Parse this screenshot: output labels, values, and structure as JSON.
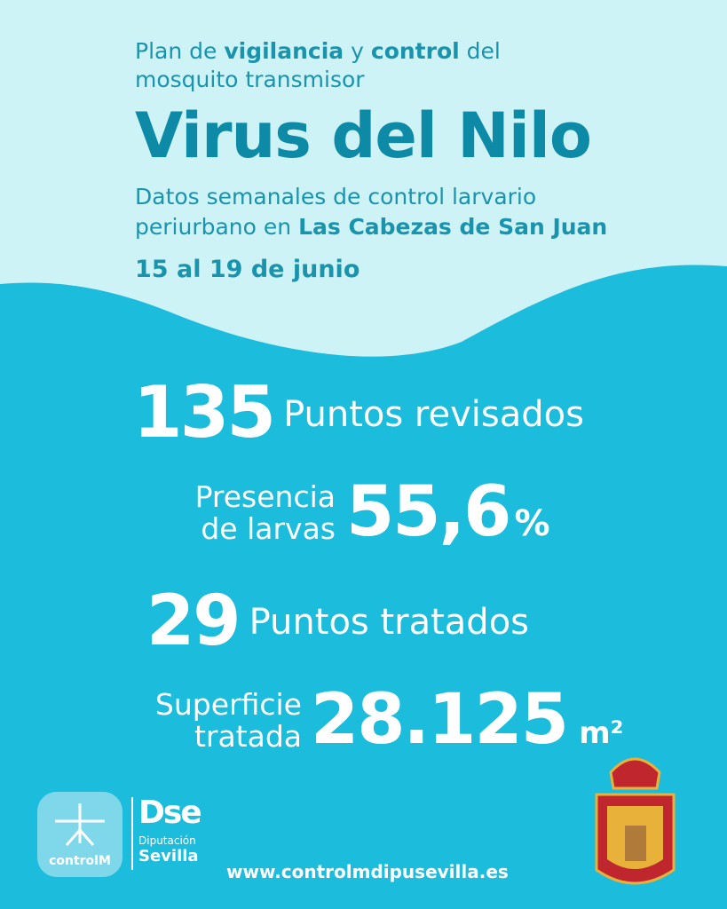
{
  "header": {
    "intro": [
      "Plan de",
      "vigilancia",
      "y",
      "control",
      "del"
    ],
    "intro_line2": "mosquito transmisor",
    "title": "Virus del Nilo",
    "subtitle_line1": "Datos semanales de control larvario",
    "subtitle_line2": [
      "periurbano en",
      "Las Cabezas de San Juan"
    ],
    "date": "15 al 19 de junio"
  },
  "stats": [
    {
      "number": "135",
      "label": [
        "Puntos revisados"
      ]
    },
    {
      "number": "55,6",
      "unit": "%",
      "label": [
        "Presencia",
        "de larvas"
      ]
    },
    {
      "number": "29",
      "label": [
        "Puntos tratados"
      ]
    },
    {
      "number": "28.125",
      "unit": "m²",
      "label": [
        "Superficie",
        "tratada"
      ]
    }
  ],
  "footer": {
    "logo_control": "controlM",
    "logo_dip_mark": "Dse",
    "logo_dip_small": "Diputación",
    "logo_dip_big": "Sevilla",
    "url": "www.controlmdipusevilla.es"
  }
}
